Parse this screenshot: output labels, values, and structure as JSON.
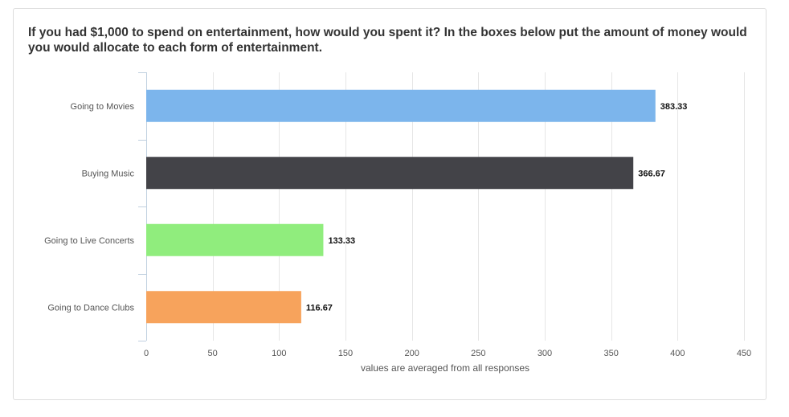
{
  "chart_data": {
    "type": "bar",
    "orientation": "horizontal",
    "title": "If you had $1,000 to spend on entertainment, how would you spent it?  In the boxes below put the amount of money would you would allocate to each form of entertainment.",
    "categories": [
      "Going to Movies",
      "Buying Music",
      "Going to Live Concerts",
      "Going to Dance Clubs"
    ],
    "values": [
      383.33,
      366.67,
      133.33,
      116.67
    ],
    "data_labels": [
      "383.33",
      "366.67",
      "133.33",
      "116.67"
    ],
    "colors": [
      "#7cb5ec",
      "#434348",
      "#90ed7d",
      "#f7a35c"
    ],
    "xlabel": "values are averaged from all responses",
    "xlim": [
      0,
      450
    ],
    "ticks": [
      0,
      50,
      100,
      150,
      200,
      250,
      300,
      350,
      400,
      450
    ],
    "grid": true,
    "legend": "none"
  }
}
